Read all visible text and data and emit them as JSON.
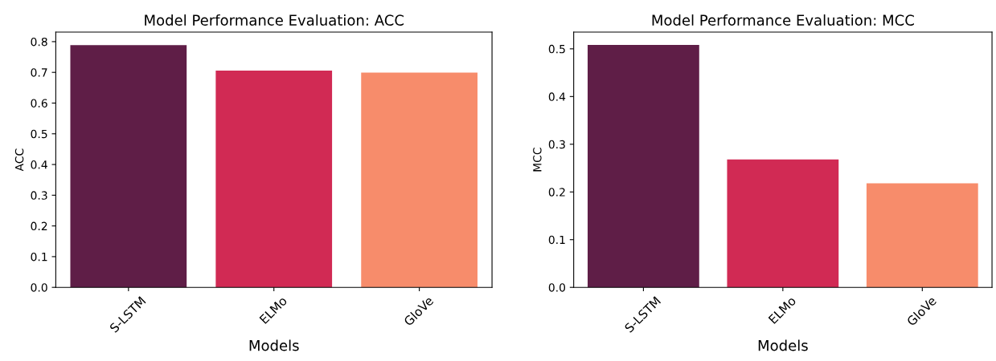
{
  "chart_data": [
    {
      "type": "bar",
      "title": "Model Performance Evaluation: ACC",
      "xlabel": "Models",
      "ylabel": "ACC",
      "categories": [
        "S-LSTM",
        "ELMo",
        "GloVe"
      ],
      "values": [
        0.789,
        0.706,
        0.699
      ],
      "colors": [
        "#5f1e47",
        "#d12a54",
        "#f78c6b"
      ],
      "ylim": [
        0,
        0.831
      ],
      "yticks": [
        {
          "value": 0,
          "label": "0.0"
        },
        0.1,
        0.2,
        0.3,
        0.4,
        0.5,
        0.6,
        0.7,
        0.8
      ],
      "grid": false
    },
    {
      "type": "bar",
      "title": "Model Performance Evaluation: MCC",
      "xlabel": "Models",
      "ylabel": "MCC",
      "categories": [
        "S-LSTM",
        "ELMo",
        "GloVe"
      ],
      "values": [
        0.508,
        0.268,
        0.218
      ],
      "colors": [
        "#5f1e47",
        "#d12a54",
        "#f78c6b"
      ],
      "ylim": [
        0,
        0.535
      ],
      "yticks": [
        {
          "value": 0,
          "label": "0.0"
        },
        0.1,
        0.2,
        0.3,
        0.4,
        0.5
      ],
      "grid": false
    }
  ]
}
